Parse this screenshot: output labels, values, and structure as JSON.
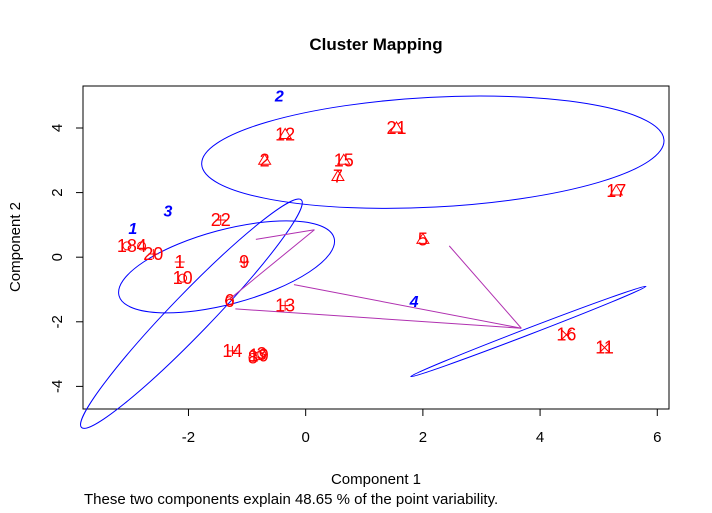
{
  "chart_data": {
    "type": "scatter",
    "title": "Cluster Mapping",
    "xlabel": "Component 1",
    "ylabel": "Component 2",
    "subtitle": "These two components explain 48.65 % of the point variability.",
    "xlim": [
      -3.8,
      6.2
    ],
    "ylim": [
      -4.7,
      5.3
    ],
    "xticks": [
      -2,
      0,
      2,
      4,
      6
    ],
    "yticks": [
      -4,
      -2,
      0,
      2,
      4
    ],
    "points": [
      {
        "label": "1",
        "x": -2.15,
        "y": -0.15,
        "cluster": 1,
        "marker": "plus"
      },
      {
        "label": "2",
        "x": -0.7,
        "y": 3.0,
        "cluster": 2,
        "marker": "triangle"
      },
      {
        "label": "3",
        "x": -0.75,
        "y": -3.0,
        "cluster": 1,
        "marker": "circle"
      },
      {
        "label": "4",
        "x": -2.8,
        "y": 0.35,
        "cluster": 1,
        "marker": "circle"
      },
      {
        "label": "5",
        "x": 2.0,
        "y": 0.55,
        "cluster": 2,
        "marker": "triangle"
      },
      {
        "label": "6",
        "x": -1.3,
        "y": -1.35,
        "cluster": 1,
        "marker": "circle"
      },
      {
        "label": "7",
        "x": 0.55,
        "y": 2.5,
        "cluster": 2,
        "marker": "triangle"
      },
      {
        "label": "8",
        "x": -0.9,
        "y": -3.1,
        "cluster": 1,
        "marker": "circle"
      },
      {
        "label": "9",
        "x": -1.05,
        "y": -0.15,
        "cluster": 3,
        "marker": "plus"
      },
      {
        "label": "10",
        "x": -2.1,
        "y": -0.65,
        "cluster": 1,
        "marker": "circle"
      },
      {
        "label": "11",
        "x": 5.1,
        "y": -2.8,
        "cluster": 4,
        "marker": "x"
      },
      {
        "label": "12",
        "x": -0.35,
        "y": 3.8,
        "cluster": 2,
        "marker": "triangle"
      },
      {
        "label": "13",
        "x": -0.35,
        "y": -1.5,
        "cluster": 3,
        "marker": "plus"
      },
      {
        "label": "14",
        "x": -1.25,
        "y": -2.9,
        "cluster": 1,
        "marker": "plus"
      },
      {
        "label": "15",
        "x": 0.65,
        "y": 3.0,
        "cluster": 2,
        "marker": "triangle"
      },
      {
        "label": "16",
        "x": 4.45,
        "y": -2.4,
        "cluster": 4,
        "marker": "x"
      },
      {
        "label": "17",
        "x": 5.3,
        "y": 2.05,
        "cluster": 2,
        "marker": "triangle"
      },
      {
        "label": "18",
        "x": -3.05,
        "y": 0.35,
        "cluster": 1,
        "marker": "circle"
      },
      {
        "label": "19",
        "x": -0.8,
        "y": -3.05,
        "cluster": 1,
        "marker": "circle"
      },
      {
        "label": "20",
        "x": -2.6,
        "y": 0.1,
        "cluster": 1,
        "marker": "plus"
      },
      {
        "label": "21",
        "x": 1.55,
        "y": 4.0,
        "cluster": 2,
        "marker": "triangle"
      },
      {
        "label": "22",
        "x": -1.45,
        "y": 1.15,
        "cluster": 3,
        "marker": "plus"
      }
    ],
    "clusters": [
      {
        "label": "1",
        "cx": -1.95,
        "cy": -1.75,
        "a": 2.7,
        "b": 0.62,
        "angle": -46,
        "label_x": -2.95,
        "label_y": 0.9
      },
      {
        "label": "2",
        "cx": 2.17,
        "cy": 3.25,
        "a": 3.95,
        "b": 1.7,
        "angle": -3,
        "label_x": -0.45,
        "label_y": 5.0
      },
      {
        "label": "3",
        "cx": -1.35,
        "cy": -0.3,
        "a": 1.9,
        "b": 1.15,
        "angle": -15,
        "label_x": -2.35,
        "label_y": 1.45
      },
      {
        "label": "4",
        "cx": 3.8,
        "cy": -2.3,
        "a": 2.15,
        "b": 0.1,
        "angle": -21,
        "label_x": 1.85,
        "label_y": -1.35
      }
    ],
    "connectors": [
      {
        "x1": -1.2,
        "y1": -1.6,
        "x2": 3.68,
        "y2": -2.2
      },
      {
        "x1": -0.2,
        "y1": -0.85,
        "x2": 3.68,
        "y2": -2.2
      },
      {
        "x1": -1.3,
        "y1": -1.3,
        "x2": 0.15,
        "y2": 0.85
      },
      {
        "x1": -0.85,
        "y1": 0.55,
        "x2": 0.15,
        "y2": 0.85
      },
      {
        "x1": 2.45,
        "y1": 0.35,
        "x2": 3.68,
        "y2": -2.2
      }
    ],
    "colors": {
      "points": "#ff0000",
      "ellipses": "#0000ff",
      "cluster_labels": "#0000ff",
      "connectors": "#b030b0"
    }
  }
}
